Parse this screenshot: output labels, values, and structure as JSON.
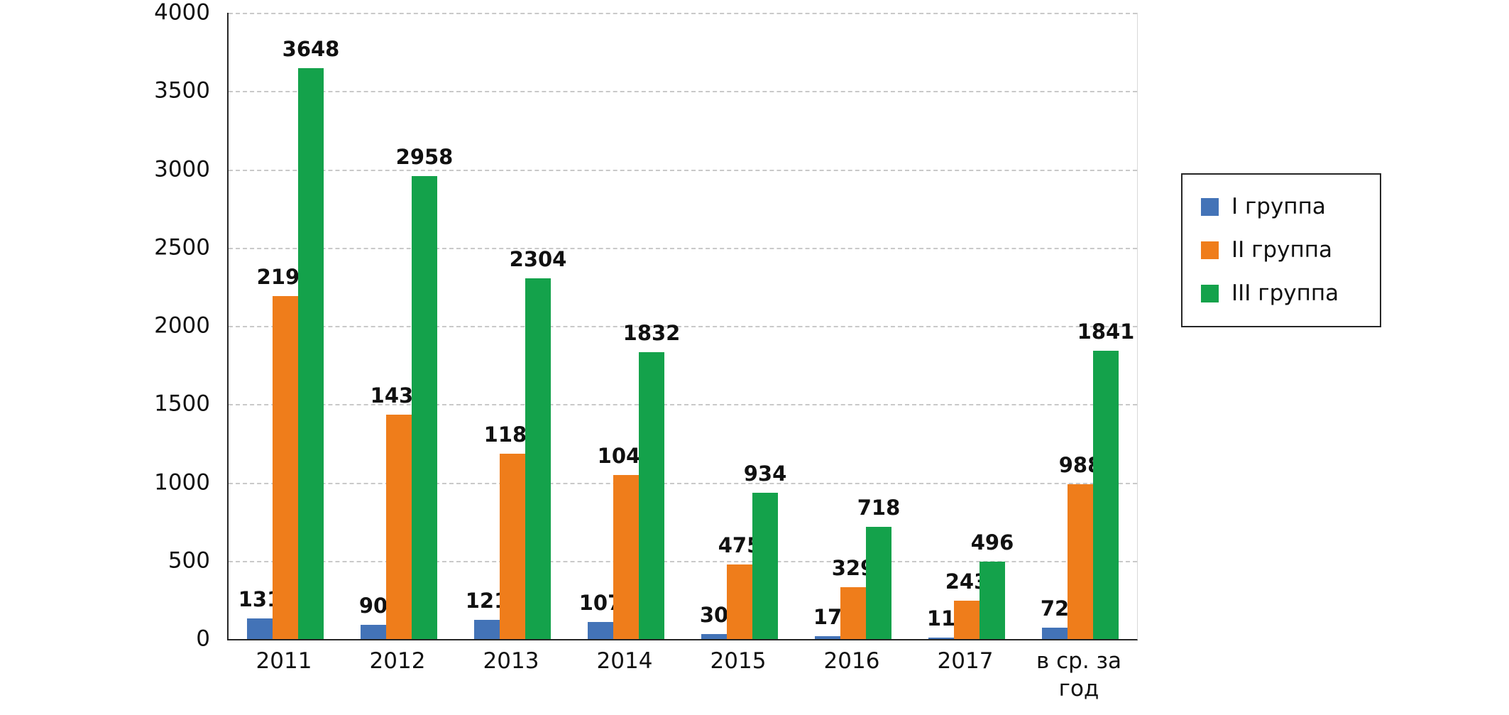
{
  "chart_data": {
    "type": "bar",
    "title": "",
    "categories": [
      "2011",
      "2012",
      "2013",
      "2014",
      "2015",
      "2016",
      "2017",
      "в ср. за год"
    ],
    "series": [
      {
        "name": "I группа",
        "color": "#4373b7",
        "values": [
          131,
          90,
          121,
          107,
          30,
          17,
          11,
          72
        ]
      },
      {
        "name": "II группа",
        "color": "#ef7d1b",
        "values": [
          2191,
          1435,
          1186,
          1048,
          475,
          329,
          243,
          988
        ]
      },
      {
        "name": "III группа",
        "color": "#14a24b",
        "values": [
          3648,
          2958,
          2304,
          1832,
          934,
          718,
          496,
          1841
        ]
      }
    ],
    "xlabel": "",
    "ylabel": "",
    "ylim": [
      0,
      4000
    ],
    "yticks": [
      0,
      500,
      1000,
      1500,
      2000,
      2500,
      3000,
      3500,
      4000
    ],
    "grid": "horizontal-dashed",
    "legend_position": "right",
    "value_labels": true
  }
}
